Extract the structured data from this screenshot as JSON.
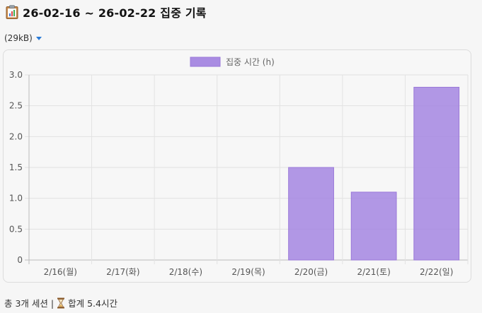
{
  "header": {
    "icon": "clipboard-chart-icon",
    "title": "26-02-16 ~ 26-02-22 집중 기록"
  },
  "file_size": {
    "label": "(29kB)",
    "icon": "caret-down-icon"
  },
  "chart_data": {
    "type": "bar",
    "categories": [
      "2/16(월)",
      "2/17(화)",
      "2/18(수)",
      "2/19(목)",
      "2/20(금)",
      "2/21(토)",
      "2/22(일)"
    ],
    "series": [
      {
        "name": "집중 시간 (h)",
        "values": [
          0,
          0,
          0,
          0,
          1.5,
          1.1,
          2.8
        ],
        "color": "#a98ce2",
        "border_color": "#9a78d8"
      }
    ],
    "ylim": [
      0,
      3.0
    ],
    "yticks": [
      "0",
      "0.5",
      "1.0",
      "1.5",
      "2.0",
      "2.5",
      "3.0"
    ],
    "grid": true,
    "legend": "top-center"
  },
  "footer": {
    "sessions": "총 3개 세션 |",
    "icon": "hourglass-icon",
    "total": "합계 5.4시간"
  }
}
